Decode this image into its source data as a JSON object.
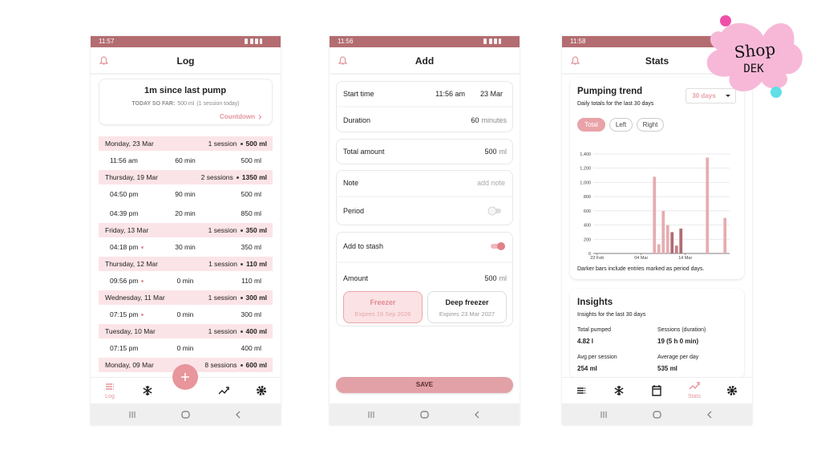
{
  "log": {
    "status_time": "11:57",
    "title": "Log",
    "summary": {
      "heading": "1m since last pump",
      "today_label": "TODAY SO FAR:",
      "today_amount": "500 ml",
      "today_note": "(1 session today)",
      "link": "Countdown"
    },
    "days": [
      {
        "date": "Monday, 23 Mar",
        "sessions": "1 session",
        "total": "500 ml",
        "entries": [
          {
            "time": "11:56 am",
            "duration": "60 min",
            "amount": "500 ml",
            "period": false
          }
        ]
      },
      {
        "date": "Thursday, 19 Mar",
        "sessions": "2 sessions",
        "total": "1350 ml",
        "entries": [
          {
            "time": "04:50 pm",
            "duration": "90 min",
            "amount": "500 ml",
            "period": false
          },
          {
            "time": "04:39 pm",
            "duration": "20 min",
            "amount": "850 ml",
            "period": false
          }
        ]
      },
      {
        "date": "Friday, 13 Mar",
        "sessions": "1 session",
        "total": "350 ml",
        "entries": [
          {
            "time": "04:18 pm",
            "duration": "30 min",
            "amount": "350 ml",
            "period": true
          }
        ]
      },
      {
        "date": "Thursday, 12 Mar",
        "sessions": "1 session",
        "total": "110 ml",
        "entries": [
          {
            "time": "09:56 pm",
            "duration": "0 min",
            "amount": "110 ml",
            "period": true
          }
        ]
      },
      {
        "date": "Wednesday, 11 Mar",
        "sessions": "1 session",
        "total": "300 ml",
        "entries": [
          {
            "time": "07:15 pm",
            "duration": "0 min",
            "amount": "300 ml",
            "period": true
          }
        ]
      },
      {
        "date": "Tuesday, 10 Mar",
        "sessions": "1 session",
        "total": "400 ml",
        "entries": [
          {
            "time": "07:15 pm",
            "duration": "0 min",
            "amount": "400 ml",
            "period": false
          }
        ]
      },
      {
        "date": "Monday, 09 Mar",
        "sessions": "8 sessions",
        "total": "600 ml",
        "entries": []
      }
    ],
    "nav_label": "Log"
  },
  "add": {
    "status_time": "11:56",
    "title": "Add",
    "start_time_label": "Start time",
    "start_time": "11:56 am",
    "start_date": "23 Mar",
    "duration_label": "Duration",
    "duration": "60",
    "duration_unit": "minutes",
    "total_label": "Total amount",
    "total": "500",
    "total_unit": "ml",
    "note_label": "Note",
    "note_placeholder": "add note",
    "period_label": "Period",
    "period_on": false,
    "stash_label": "Add to stash",
    "stash_on": true,
    "amount_label": "Amount",
    "amount": "500",
    "amount_unit": "ml",
    "storage": [
      {
        "name": "Freezer",
        "expires": "Expires 19 Sep 2026",
        "selected": true
      },
      {
        "name": "Deep freezer",
        "expires": "Expires 23 Mar 2027",
        "selected": false
      }
    ],
    "save": "SAVE"
  },
  "stats": {
    "status_time": "11:58",
    "title": "Stats",
    "trend_title": "Pumping trend",
    "trend_subtitle": "Daily totals for the last 30 days",
    "range": "30 days",
    "filters": [
      {
        "label": "Total",
        "selected": true
      },
      {
        "label": "Left",
        "selected": false
      },
      {
        "label": "Right",
        "selected": false
      }
    ],
    "chart_data": {
      "type": "bar",
      "categories": [
        "22 Feb",
        null,
        null,
        null,
        null,
        null,
        null,
        null,
        null,
        null,
        "04 Mar",
        null,
        null,
        null,
        null,
        null,
        null,
        null,
        null,
        null,
        "14 Mar",
        null,
        null,
        null,
        null,
        null,
        null,
        null,
        null,
        null
      ],
      "values": [
        0,
        0,
        0,
        0,
        0,
        0,
        0,
        0,
        0,
        0,
        0,
        0,
        0,
        1080,
        130,
        600,
        400,
        300,
        110,
        350,
        0,
        0,
        0,
        0,
        0,
        1350,
        0,
        0,
        0,
        500
      ],
      "colors": [
        "#e6adb1",
        "#e6adb1",
        "#e6adb1",
        "#e6adb1",
        "#e6adb1",
        "#e6adb1",
        "#e6adb1",
        "#e6adb1",
        "#e6adb1",
        "#e6adb1",
        "#e6adb1",
        "#e6adb1",
        "#e6adb1",
        "#e6adb1",
        "#e6adb1",
        "#e6adb1",
        "#e6adb1",
        "#b06c74",
        "#c08088",
        "#b06c74",
        "#e6adb1",
        "#e6adb1",
        "#e6adb1",
        "#e6adb1",
        "#e6adb1",
        "#e6adb1",
        "#e6adb1",
        "#e6adb1",
        "#e6adb1",
        "#e6adb1"
      ],
      "ylim": [
        0,
        1400
      ],
      "yticks": [
        0,
        200,
        400,
        600,
        800,
        {
          "value": 1000,
          "label": "1,000"
        },
        {
          "value": 1200,
          "label": "1,200"
        },
        {
          "value": 1400,
          "label": "1,400"
        }
      ],
      "grid": true
    },
    "chart_note": "Darker bars include entries marked as period days.",
    "insights_title": "Insights",
    "insights_subtitle": "Insights for the last 30 days",
    "insights": [
      {
        "label": "Total pumped",
        "value": "4.82 l"
      },
      {
        "label": "Sessions (duration)",
        "value": "19 (5 h 0 min)"
      },
      {
        "label": "Avg per session",
        "value": "254 ml"
      },
      {
        "label": "Average per day",
        "value": "535 ml"
      }
    ],
    "nav_label": "Stats"
  },
  "logo": {
    "line1": "Shop",
    "line2": "DEK"
  }
}
